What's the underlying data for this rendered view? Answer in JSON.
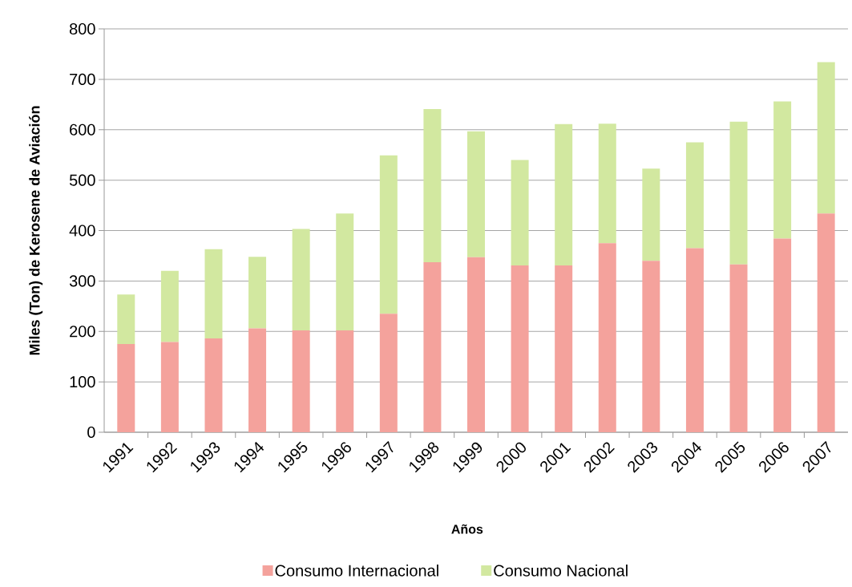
{
  "chart_data": {
    "type": "bar",
    "stacked": true,
    "xlabel": "Años",
    "ylabel": "Miles (Ton) de Kerosene de Aviación",
    "categories": [
      "1991",
      "1992",
      "1993",
      "1994",
      "1995",
      "1996",
      "1997",
      "1998",
      "1999",
      "2000",
      "2001",
      "2002",
      "2003",
      "2004",
      "2005",
      "2006",
      "2007"
    ],
    "series": [
      {
        "name": "Consumo Internacional",
        "color": "#f4a29c",
        "values": [
          175,
          179,
          186,
          206,
          202,
          202,
          235,
          337,
          347,
          331,
          331,
          375,
          340,
          365,
          333,
          384,
          434
        ]
      },
      {
        "name": "Consumo Nacional",
        "color": "#d2e8a0",
        "values": [
          98,
          141,
          177,
          142,
          201,
          232,
          314,
          304,
          250,
          209,
          280,
          237,
          183,
          210,
          283,
          272,
          300
        ]
      }
    ],
    "ylim": [
      0,
      800
    ],
    "yticks": [
      0,
      100,
      200,
      300,
      400,
      500,
      600,
      700,
      800
    ],
    "grid": "y",
    "legend": "bottom"
  }
}
